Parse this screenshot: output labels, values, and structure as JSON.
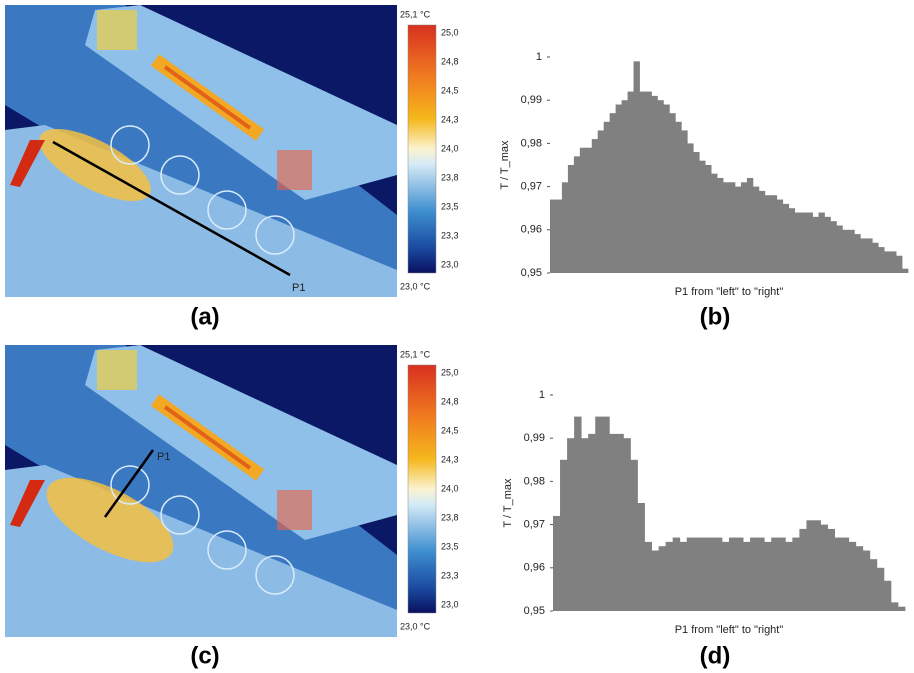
{
  "chart_data": [
    {
      "type": "bar",
      "label": "(b)",
      "y_label": "T / T_max",
      "x_label": "P1 from \"left\" to \"right\"",
      "color": "#808080",
      "values": [
        0.967,
        0.967,
        0.971,
        0.975,
        0.977,
        0.979,
        0.979,
        0.981,
        0.983,
        0.985,
        0.987,
        0.989,
        0.99,
        0.992,
        0.999,
        0.992,
        0.992,
        0.991,
        0.99,
        0.989,
        0.987,
        0.985,
        0.983,
        0.98,
        0.978,
        0.976,
        0.975,
        0.973,
        0.972,
        0.971,
        0.971,
        0.97,
        0.971,
        0.972,
        0.97,
        0.969,
        0.968,
        0.968,
        0.967,
        0.966,
        0.965,
        0.964,
        0.964,
        0.964,
        0.963,
        0.964,
        0.963,
        0.962,
        0.961,
        0.96,
        0.96,
        0.959,
        0.958,
        0.958,
        0.957,
        0.956,
        0.955,
        0.955,
        0.954,
        0.951
      ],
      "ylim": [
        0.95,
        1.0
      ],
      "yticks": [
        {
          "value": 0.95,
          "label": "0,95"
        },
        {
          "value": 0.96,
          "label": "0,96"
        },
        {
          "value": 0.97,
          "label": "0,97"
        },
        {
          "value": 0.98,
          "label": "0,98"
        },
        {
          "value": 0.99,
          "label": "0,99"
        },
        1
      ]
    },
    {
      "type": "bar",
      "label": "(d)",
      "y_label": "T / T_max",
      "x_label": "P1 from \"left\" to \"right\"",
      "color": "#808080",
      "values": [
        0.972,
        0.985,
        0.99,
        0.995,
        0.99,
        0.991,
        0.995,
        0.995,
        0.991,
        0.991,
        0.99,
        0.985,
        0.975,
        0.966,
        0.964,
        0.965,
        0.966,
        0.967,
        0.966,
        0.967,
        0.967,
        0.967,
        0.967,
        0.967,
        0.966,
        0.967,
        0.967,
        0.966,
        0.967,
        0.967,
        0.966,
        0.967,
        0.967,
        0.966,
        0.967,
        0.969,
        0.971,
        0.971,
        0.97,
        0.969,
        0.967,
        0.967,
        0.966,
        0.965,
        0.964,
        0.962,
        0.96,
        0.957,
        0.952,
        0.951
      ],
      "ylim": [
        0.95,
        1.0
      ],
      "yticks": [
        {
          "value": 0.95,
          "label": "0,95"
        },
        {
          "value": 0.96,
          "label": "0,96"
        },
        {
          "value": 0.97,
          "label": "0,97"
        },
        {
          "value": 0.98,
          "label": "0,98"
        },
        {
          "value": 0.99,
          "label": "0,99"
        },
        1
      ]
    }
  ],
  "panels": [
    {
      "label": "(a)",
      "probe": "P1",
      "colorbar": {
        "max_label": "25,1 °C",
        "min_label": "23,0 °C",
        "ticks": [
          "25,0",
          "24,8",
          "24,5",
          "24,3",
          "24,0",
          "23,8",
          "23,5",
          "23,3",
          "23,0"
        ]
      }
    },
    {
      "label": "(c)",
      "probe": "P1",
      "colorbar": {
        "max_label": "25,1 °C",
        "min_label": "23,0 °C",
        "ticks": [
          "25,0",
          "24,8",
          "24,5",
          "24,3",
          "24,0",
          "23,8",
          "23,5",
          "23,3",
          "23,0"
        ]
      }
    }
  ]
}
